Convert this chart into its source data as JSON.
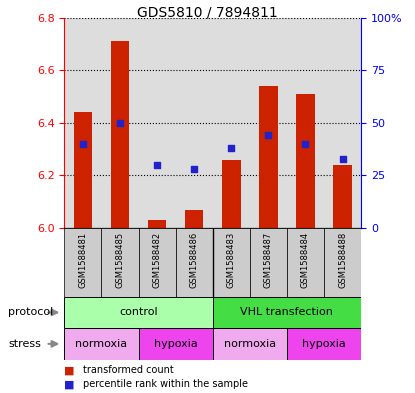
{
  "title": "GDS5810 / 7894811",
  "samples": [
    "GSM1588481",
    "GSM1588485",
    "GSM1588482",
    "GSM1588486",
    "GSM1588483",
    "GSM1588487",
    "GSM1588484",
    "GSM1588488"
  ],
  "red_values": [
    6.44,
    6.71,
    6.03,
    6.07,
    6.26,
    6.54,
    6.51,
    6.24
  ],
  "blue_percentile": [
    40,
    50,
    30,
    28,
    38,
    44,
    40,
    33
  ],
  "ylim_left": [
    6.0,
    6.8
  ],
  "ylim_right": [
    0,
    100
  ],
  "yticks_left": [
    6.0,
    6.2,
    6.4,
    6.6,
    6.8
  ],
  "yticks_right": [
    0,
    25,
    50,
    75,
    100
  ],
  "ytick_labels_right": [
    "0",
    "25",
    "50",
    "75",
    "100%"
  ],
  "protocol_groups": [
    {
      "label": "control",
      "start": 0,
      "end": 4,
      "color": "#aaffaa"
    },
    {
      "label": "VHL transfection",
      "start": 4,
      "end": 8,
      "color": "#44dd44"
    }
  ],
  "stress_groups": [
    {
      "label": "normoxia",
      "start": 0,
      "end": 2,
      "color": "#f0aaee"
    },
    {
      "label": "hypoxia",
      "start": 2,
      "end": 4,
      "color": "#ee44ee"
    },
    {
      "label": "normoxia",
      "start": 4,
      "end": 6,
      "color": "#f0aaee"
    },
    {
      "label": "hypoxia",
      "start": 6,
      "end": 8,
      "color": "#ee44ee"
    }
  ],
  "bar_color": "#cc2200",
  "dot_color": "#2222cc",
  "background_color": "#ffffff",
  "plot_bg_color": "#dddddd",
  "sample_bg_color": "#cccccc",
  "label_protocol": "protocol",
  "label_stress": "stress",
  "legend_red": "transformed count",
  "legend_blue": "percentile rank within the sample"
}
